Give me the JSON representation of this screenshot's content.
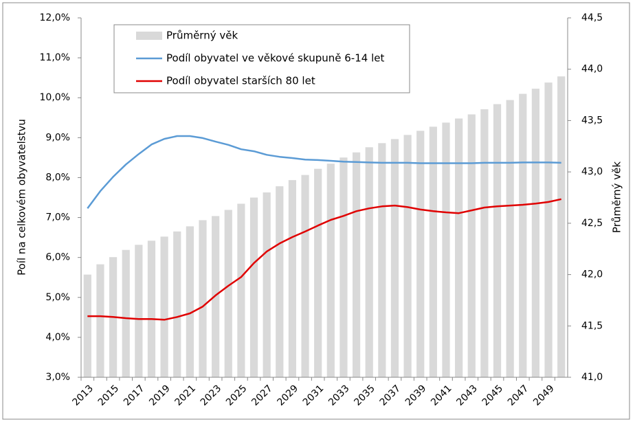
{
  "chart_data": {
    "type": "combo",
    "categories": [
      "2013",
      null,
      "2015",
      null,
      "2017",
      null,
      "2019",
      null,
      "2021",
      null,
      "2023",
      null,
      "2025",
      null,
      "2027",
      null,
      "2029",
      null,
      "2031",
      null,
      "2033",
      null,
      "2035",
      null,
      "2037",
      null,
      "2039",
      null,
      "2041",
      null,
      "2043",
      null,
      "2045",
      null,
      "2047",
      null,
      "2049",
      null
    ],
    "series": [
      {
        "name": "Průměrný věk",
        "type": "bar",
        "axis": "y2",
        "color": "#d9d9d9",
        "values": [
          42.0,
          42.1,
          42.17,
          42.24,
          42.29,
          42.33,
          42.37,
          42.42,
          42.47,
          42.53,
          42.57,
          42.63,
          42.69,
          42.75,
          42.8,
          42.86,
          42.92,
          42.97,
          43.03,
          43.08,
          43.14,
          43.19,
          43.24,
          43.28,
          43.32,
          43.36,
          43.4,
          43.44,
          43.48,
          43.52,
          43.56,
          43.61,
          43.66,
          43.7,
          43.76,
          43.81,
          43.87,
          43.93
        ]
      },
      {
        "name": "Podíl obyvatel ve věkové skupuně 6-14 let",
        "type": "line",
        "color": "#5b9bd5",
        "values": [
          7.23,
          7.66,
          8.02,
          8.33,
          8.59,
          8.83,
          8.97,
          9.04,
          9.04,
          8.99,
          8.9,
          8.82,
          8.71,
          8.66,
          8.57,
          8.52,
          8.49,
          8.45,
          8.44,
          8.42,
          8.4,
          8.39,
          8.38,
          8.37,
          8.37,
          8.37,
          8.36,
          8.36,
          8.36,
          8.36,
          8.36,
          8.37,
          8.37,
          8.37,
          8.38,
          8.38,
          8.38,
          8.37
        ]
      },
      {
        "name": "Podíl obyvatel starších  80 let",
        "type": "line",
        "color": "#e00000",
        "values": [
          4.53,
          4.53,
          4.51,
          4.48,
          4.46,
          4.46,
          4.44,
          4.51,
          4.6,
          4.77,
          5.05,
          5.29,
          5.51,
          5.86,
          6.15,
          6.35,
          6.51,
          6.65,
          6.8,
          6.94,
          7.04,
          7.16,
          7.23,
          7.28,
          7.3,
          7.26,
          7.2,
          7.16,
          7.13,
          7.11,
          7.18,
          7.25,
          7.28,
          7.3,
          7.32,
          7.35,
          7.39,
          7.46
        ]
      }
    ],
    "ylabel": "Poíl na celkovém obyvatelstvu",
    "y2label": "Průměrný věk",
    "ylim": [
      3.0,
      12.0
    ],
    "yticks": [
      {
        "value": 3.0,
        "label": "3,0%"
      },
      {
        "value": 4.0,
        "label": "4,0%"
      },
      {
        "value": 5.0,
        "label": "5,0%"
      },
      {
        "value": 6.0,
        "label": "6,0%"
      },
      {
        "value": 7.0,
        "label": "7,0%"
      },
      {
        "value": 8.0,
        "label": "8,0%"
      },
      {
        "value": 9.0,
        "label": "9,0%"
      },
      {
        "value": 10.0,
        "label": "10,0%"
      },
      {
        "value": 11.0,
        "label": "11,0%"
      },
      {
        "value": 12.0,
        "label": "12,0%"
      }
    ],
    "y2lim": [
      41.0,
      44.5
    ],
    "y2ticks": [
      {
        "value": 41.0,
        "label": "41,0"
      },
      {
        "value": 41.5,
        "label": "41,5"
      },
      {
        "value": 42.0,
        "label": "42,0"
      },
      {
        "value": 42.5,
        "label": "42,5"
      },
      {
        "value": 43.0,
        "label": "43,0"
      },
      {
        "value": 43.5,
        "label": "43,5"
      },
      {
        "value": 44.0,
        "label": "44,0"
      },
      {
        "value": 44.5,
        "label": "44,5"
      }
    ],
    "grid": false,
    "legend": "top-left"
  }
}
